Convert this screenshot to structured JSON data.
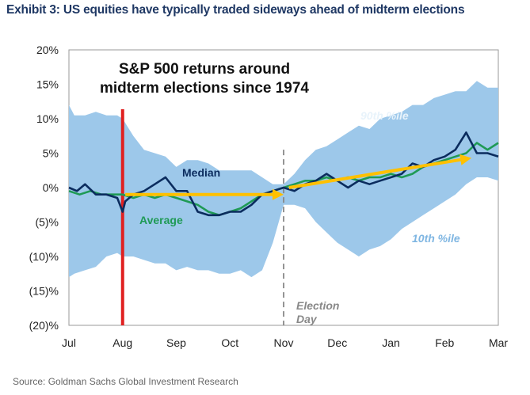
{
  "title": "Exhibit 3: US equities have typically traded sideways ahead of midterm elections",
  "source": "Source: Goldman Sachs Global Investment Research",
  "colors": {
    "band": "#9dc8ea",
    "median": "#0b2c5e",
    "average": "#1f9a55",
    "marker": "#e02020",
    "trend": "#ffc000",
    "election": "#888888"
  },
  "chart_data": {
    "type": "area",
    "title": "S&P 500 returns around midterm elections since 1974",
    "title_lines": [
      "S&P 500 returns around",
      "midterm elections since 1974"
    ],
    "x_ticks": [
      "Jul",
      "Aug",
      "Sep",
      "Oct",
      "Nov",
      "Dec",
      "Jan",
      "Feb",
      "Mar"
    ],
    "y_ticks": [
      {
        "value": 20,
        "label": "20%"
      },
      {
        "value": 15,
        "label": "15%"
      },
      {
        "value": 10,
        "label": "10%"
      },
      {
        "value": 5,
        "label": "5%"
      },
      {
        "value": 0,
        "label": "0%"
      },
      {
        "value": -5,
        "label": "(5)%"
      },
      {
        "value": -10,
        "label": "(10)%"
      },
      {
        "value": -15,
        "label": "(15)%"
      },
      {
        "value": -20,
        "label": "(20)%"
      }
    ],
    "xlim": [
      0,
      8
    ],
    "ylim": [
      -20,
      20
    ],
    "x_units": "months after start of July",
    "band_x": [
      0,
      0.1,
      0.3,
      0.5,
      0.7,
      0.9,
      1.0,
      1.2,
      1.4,
      1.6,
      1.8,
      2.0,
      2.2,
      2.4,
      2.6,
      2.8,
      3.0,
      3.2,
      3.4,
      3.6,
      3.8,
      4.0,
      4.2,
      4.4,
      4.6,
      4.8,
      5.0,
      5.2,
      5.4,
      5.6,
      5.8,
      6.0,
      6.2,
      6.4,
      6.6,
      6.8,
      7.0,
      7.2,
      7.4,
      7.6,
      7.8,
      8.0
    ],
    "band_upper": [
      12,
      10.5,
      10.5,
      11,
      10.5,
      10.5,
      10,
      7.5,
      5.5,
      5,
      4.5,
      3,
      4,
      4,
      3.5,
      2.5,
      2.5,
      2.5,
      2.5,
      1.5,
      0.5,
      0.5,
      2,
      4,
      5.5,
      6,
      7,
      8,
      9,
      8.5,
      10,
      10.5,
      11,
      12,
      12,
      13,
      13.5,
      14,
      14,
      15.5,
      14.5,
      14.5
    ],
    "band_lower": [
      -13,
      -12.5,
      -12,
      -11.5,
      -10,
      -9.5,
      -10,
      -10,
      -10.5,
      -11,
      -11,
      -12,
      -11.5,
      -12,
      -12,
      -12.5,
      -12.5,
      -12,
      -13,
      -12,
      -8,
      -2.5,
      -2.5,
      -3,
      -5,
      -6.5,
      -8,
      -9,
      -10,
      -9,
      -8.5,
      -7.5,
      -6,
      -5,
      -4,
      -3,
      -2,
      -1,
      0.5,
      1.5,
      1.5,
      1
    ],
    "median": {
      "name": "Median",
      "x": [
        0,
        0.15,
        0.3,
        0.5,
        0.7,
        0.9,
        1.0,
        1.05,
        1.2,
        1.4,
        1.6,
        1.8,
        2.0,
        2.2,
        2.4,
        2.6,
        2.8,
        3.0,
        3.2,
        3.4,
        3.6,
        3.8,
        4.0,
        4.2,
        4.4,
        4.6,
        4.8,
        5.0,
        5.2,
        5.4,
        5.6,
        5.8,
        6.0,
        6.2,
        6.4,
        6.6,
        6.8,
        7.0,
        7.2,
        7.4,
        7.6,
        7.8,
        8.0
      ],
      "y": [
        0,
        -0.5,
        0.5,
        -1,
        -1,
        -1.5,
        -3.5,
        -2,
        -1,
        -0.5,
        0.5,
        1.5,
        -0.5,
        -0.5,
        -3.5,
        -4,
        -4,
        -3.5,
        -3.5,
        -2.5,
        -1,
        -0.5,
        0,
        -0.5,
        0.5,
        1,
        2,
        1,
        0,
        1,
        0.5,
        1,
        1.5,
        2,
        3.5,
        3,
        4,
        4.5,
        5.5,
        8,
        5,
        5,
        4.5
      ]
    },
    "average": {
      "name": "Average",
      "x": [
        0,
        0.2,
        0.4,
        0.6,
        0.8,
        1.0,
        1.2,
        1.4,
        1.6,
        1.8,
        2.0,
        2.2,
        2.4,
        2.6,
        2.8,
        3.0,
        3.2,
        3.4,
        3.6,
        3.8,
        4.0,
        4.2,
        4.4,
        4.6,
        4.8,
        5.0,
        5.2,
        5.4,
        5.6,
        5.8,
        6.0,
        6.2,
        6.4,
        6.6,
        6.8,
        7.0,
        7.2,
        7.4,
        7.6,
        7.8,
        8.0
      ],
      "y": [
        -0.5,
        -1,
        -0.5,
        -1,
        -1,
        -1,
        -1.5,
        -1,
        -1.5,
        -1,
        -1.5,
        -2,
        -2.5,
        -3.5,
        -4,
        -3.5,
        -3,
        -2,
        -1,
        -0.5,
        0,
        0.5,
        1,
        1,
        1.5,
        1,
        1.5,
        1,
        1.5,
        1.5,
        2,
        1.5,
        2,
        3,
        3.5,
        4,
        4.5,
        5,
        6.5,
        5.5,
        6.5
      ]
    },
    "trend_arrows": [
      {
        "x1": 1.05,
        "y1": -1,
        "x2": 4.0,
        "y2": -1
      },
      {
        "x1": 4.1,
        "y1": 0,
        "x2": 7.5,
        "y2": 4.3
      }
    ],
    "vertical_markers": [
      {
        "x": 1.0
      },
      {
        "x": 4.0
      }
    ],
    "annotations": {
      "median_label": "Median",
      "average_label": "Average",
      "p90_label": "90th %ile",
      "p10_label": "10th %ile",
      "election_label_lines": [
        "Election",
        "Day"
      ]
    },
    "grid": false,
    "legend": "none"
  }
}
